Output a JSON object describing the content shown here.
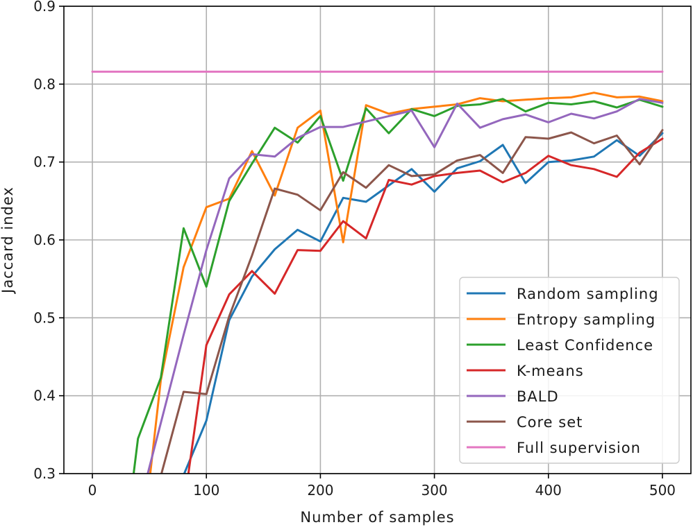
{
  "chart_data": {
    "type": "line",
    "title": "",
    "xlabel": "Number of samples",
    "ylabel": "Jaccard index",
    "xlim": [
      -25,
      525
    ],
    "ylim": [
      0.3,
      0.9
    ],
    "xticks": [
      0,
      100,
      200,
      300,
      400,
      500
    ],
    "yticks": [
      0.3,
      0.4,
      0.5,
      0.6,
      0.7,
      0.8,
      0.9
    ],
    "xtick_labels": [
      "0",
      "100",
      "200",
      "300",
      "400",
      "500"
    ],
    "ytick_labels": [
      "0.3",
      "0.4",
      "0.5",
      "0.6",
      "0.7",
      "0.8",
      "0.9"
    ],
    "grid": true,
    "legend_position": "lower-right",
    "series": [
      {
        "name": "Random sampling",
        "color": "#1f77b4",
        "points": [
          [
            80,
            0.298
          ],
          [
            100,
            0.368
          ],
          [
            120,
            0.497
          ],
          [
            140,
            0.553
          ],
          [
            160,
            0.588
          ],
          [
            180,
            0.613
          ],
          [
            200,
            0.598
          ],
          [
            220,
            0.654
          ],
          [
            240,
            0.649
          ],
          [
            260,
            0.67
          ],
          [
            280,
            0.691
          ],
          [
            300,
            0.662
          ],
          [
            320,
            0.692
          ],
          [
            340,
            0.701
          ],
          [
            360,
            0.722
          ],
          [
            380,
            0.673
          ],
          [
            400,
            0.7
          ],
          [
            420,
            0.702
          ],
          [
            440,
            0.707
          ],
          [
            460,
            0.728
          ],
          [
            480,
            0.708
          ],
          [
            500,
            0.737
          ]
        ]
      },
      {
        "name": "Entropy sampling",
        "color": "#ff7f0e",
        "points": [
          [
            50,
            0.29
          ],
          [
            60,
            0.42
          ],
          [
            80,
            0.565
          ],
          [
            100,
            0.642
          ],
          [
            120,
            0.653
          ],
          [
            140,
            0.714
          ],
          [
            160,
            0.657
          ],
          [
            180,
            0.744
          ],
          [
            200,
            0.766
          ],
          [
            220,
            0.597
          ],
          [
            240,
            0.773
          ],
          [
            260,
            0.762
          ],
          [
            280,
            0.768
          ],
          [
            300,
            0.771
          ],
          [
            320,
            0.774
          ],
          [
            340,
            0.782
          ],
          [
            360,
            0.778
          ],
          [
            380,
            0.78
          ],
          [
            400,
            0.782
          ],
          [
            420,
            0.783
          ],
          [
            440,
            0.789
          ],
          [
            460,
            0.783
          ],
          [
            480,
            0.784
          ],
          [
            500,
            0.778
          ]
        ]
      },
      {
        "name": "Least Confidence",
        "color": "#2ca02c",
        "points": [
          [
            36,
            0.298
          ],
          [
            40,
            0.345
          ],
          [
            60,
            0.423
          ],
          [
            80,
            0.615
          ],
          [
            100,
            0.54
          ],
          [
            120,
            0.65
          ],
          [
            140,
            0.698
          ],
          [
            160,
            0.744
          ],
          [
            180,
            0.725
          ],
          [
            200,
            0.759
          ],
          [
            220,
            0.676
          ],
          [
            240,
            0.769
          ],
          [
            260,
            0.737
          ],
          [
            280,
            0.768
          ],
          [
            300,
            0.759
          ],
          [
            320,
            0.772
          ],
          [
            340,
            0.774
          ],
          [
            360,
            0.781
          ],
          [
            380,
            0.765
          ],
          [
            400,
            0.776
          ],
          [
            420,
            0.774
          ],
          [
            440,
            0.778
          ],
          [
            460,
            0.77
          ],
          [
            480,
            0.78
          ],
          [
            500,
            0.771
          ]
        ]
      },
      {
        "name": "K-means",
        "color": "#d62728",
        "points": [
          [
            84,
            0.298
          ],
          [
            100,
            0.465
          ],
          [
            120,
            0.53
          ],
          [
            140,
            0.56
          ],
          [
            160,
            0.531
          ],
          [
            180,
            0.587
          ],
          [
            200,
            0.586
          ],
          [
            220,
            0.624
          ],
          [
            240,
            0.602
          ],
          [
            260,
            0.677
          ],
          [
            280,
            0.671
          ],
          [
            300,
            0.682
          ],
          [
            320,
            0.686
          ],
          [
            340,
            0.689
          ],
          [
            360,
            0.674
          ],
          [
            380,
            0.686
          ],
          [
            400,
            0.708
          ],
          [
            420,
            0.696
          ],
          [
            440,
            0.691
          ],
          [
            460,
            0.681
          ],
          [
            480,
            0.712
          ],
          [
            500,
            0.73
          ]
        ]
      },
      {
        "name": "BALD",
        "color": "#9467bd",
        "points": [
          [
            48,
            0.297
          ],
          [
            60,
            0.365
          ],
          [
            80,
            0.478
          ],
          [
            100,
            0.587
          ],
          [
            120,
            0.679
          ],
          [
            140,
            0.71
          ],
          [
            160,
            0.707
          ],
          [
            180,
            0.731
          ],
          [
            200,
            0.745
          ],
          [
            220,
            0.745
          ],
          [
            240,
            0.752
          ],
          [
            260,
            0.759
          ],
          [
            280,
            0.766
          ],
          [
            300,
            0.719
          ],
          [
            320,
            0.775
          ],
          [
            340,
            0.744
          ],
          [
            360,
            0.755
          ],
          [
            380,
            0.761
          ],
          [
            400,
            0.751
          ],
          [
            420,
            0.762
          ],
          [
            440,
            0.756
          ],
          [
            460,
            0.765
          ],
          [
            480,
            0.781
          ],
          [
            500,
            0.776
          ]
        ]
      },
      {
        "name": "Core set",
        "color": "#8c564b",
        "points": [
          [
            60,
            0.297
          ],
          [
            80,
            0.405
          ],
          [
            100,
            0.402
          ],
          [
            120,
            0.502
          ],
          [
            140,
            0.58
          ],
          [
            160,
            0.666
          ],
          [
            180,
            0.658
          ],
          [
            200,
            0.638
          ],
          [
            220,
            0.687
          ],
          [
            240,
            0.667
          ],
          [
            260,
            0.696
          ],
          [
            280,
            0.682
          ],
          [
            300,
            0.684
          ],
          [
            320,
            0.702
          ],
          [
            340,
            0.709
          ],
          [
            360,
            0.686
          ],
          [
            380,
            0.732
          ],
          [
            400,
            0.73
          ],
          [
            420,
            0.738
          ],
          [
            440,
            0.724
          ],
          [
            460,
            0.734
          ],
          [
            480,
            0.697
          ],
          [
            500,
            0.741
          ]
        ]
      },
      {
        "name": "Full supervision",
        "color": "#e377c2",
        "points": [
          [
            0,
            0.816
          ],
          [
            500,
            0.816
          ]
        ]
      }
    ]
  }
}
